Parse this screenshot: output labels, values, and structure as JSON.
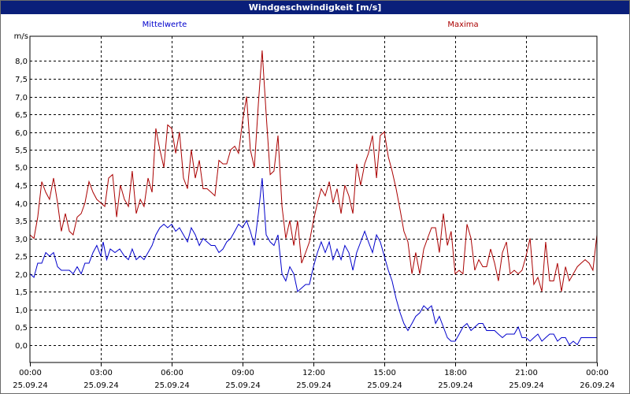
{
  "window": {
    "title": "Windgeschwindigkeit [m/s]"
  },
  "chart_data": {
    "type": "line",
    "title": "Windgeschwindigkeit [m/s]",
    "ylabel": "m/s",
    "xlabel": "",
    "ylim": [
      -0.5,
      8.7
    ],
    "yticks": [
      "0,0",
      "0,5",
      "1,0",
      "1,5",
      "2,0",
      "2,5",
      "3,0",
      "3,5",
      "4,0",
      "4,5",
      "5,0",
      "5,5",
      "6,0",
      "6,5",
      "7,0",
      "7,5",
      "8,0"
    ],
    "xlim": [
      0,
      24
    ],
    "xticks": [
      {
        "time": "00:00",
        "date": "25.09.24"
      },
      {
        "time": "03:00",
        "date": "25.09.24"
      },
      {
        "time": "06:00",
        "date": "25.09.24"
      },
      {
        "time": "09:00",
        "date": "25.09.24"
      },
      {
        "time": "12:00",
        "date": "25.09.24"
      },
      {
        "time": "15:00",
        "date": "25.09.24"
      },
      {
        "time": "18:00",
        "date": "25.09.24"
      },
      {
        "time": "21:00",
        "date": "25.09.24"
      },
      {
        "time": "00:00",
        "date": "26.09.24"
      }
    ],
    "grid": true,
    "series": [
      {
        "name": "Mittelwerte",
        "color": "#0000cc",
        "points": [
          [
            0,
            2.0
          ],
          [
            0.17,
            1.9
          ],
          [
            0.33,
            2.3
          ],
          [
            0.5,
            2.3
          ],
          [
            0.67,
            2.6
          ],
          [
            0.83,
            2.5
          ],
          [
            1.0,
            2.6
          ],
          [
            1.17,
            2.2
          ],
          [
            1.33,
            2.1
          ],
          [
            1.5,
            2.1
          ],
          [
            1.67,
            2.1
          ],
          [
            1.83,
            2.0
          ],
          [
            2.0,
            2.2
          ],
          [
            2.17,
            2.0
          ],
          [
            2.33,
            2.3
          ],
          [
            2.5,
            2.3
          ],
          [
            2.67,
            2.6
          ],
          [
            2.83,
            2.8
          ],
          [
            3.0,
            2.5
          ],
          [
            3.1,
            2.9
          ],
          [
            3.25,
            2.4
          ],
          [
            3.4,
            2.7
          ],
          [
            3.6,
            2.6
          ],
          [
            3.8,
            2.7
          ],
          [
            4.0,
            2.5
          ],
          [
            4.17,
            2.4
          ],
          [
            4.33,
            2.7
          ],
          [
            4.5,
            2.4
          ],
          [
            4.67,
            2.5
          ],
          [
            4.83,
            2.4
          ],
          [
            5.0,
            2.6
          ],
          [
            5.17,
            2.8
          ],
          [
            5.33,
            3.1
          ],
          [
            5.5,
            3.3
          ],
          [
            5.67,
            3.4
          ],
          [
            5.83,
            3.3
          ],
          [
            6.0,
            3.4
          ],
          [
            6.17,
            3.2
          ],
          [
            6.33,
            3.3
          ],
          [
            6.5,
            3.1
          ],
          [
            6.67,
            2.9
          ],
          [
            6.83,
            3.3
          ],
          [
            7.0,
            3.1
          ],
          [
            7.17,
            2.8
          ],
          [
            7.33,
            3.0
          ],
          [
            7.5,
            2.9
          ],
          [
            7.67,
            2.8
          ],
          [
            7.83,
            2.8
          ],
          [
            8.0,
            2.6
          ],
          [
            8.17,
            2.7
          ],
          [
            8.33,
            2.9
          ],
          [
            8.5,
            3.0
          ],
          [
            8.67,
            3.2
          ],
          [
            8.83,
            3.4
          ],
          [
            9.0,
            3.3
          ],
          [
            9.17,
            3.5
          ],
          [
            9.33,
            3.2
          ],
          [
            9.5,
            2.8
          ],
          [
            9.67,
            3.7
          ],
          [
            9.83,
            4.7
          ],
          [
            10.0,
            3.1
          ],
          [
            10.17,
            2.9
          ],
          [
            10.33,
            2.8
          ],
          [
            10.5,
            3.1
          ],
          [
            10.67,
            2.0
          ],
          [
            10.83,
            1.8
          ],
          [
            11.0,
            2.2
          ],
          [
            11.17,
            2.0
          ],
          [
            11.33,
            1.5
          ],
          [
            11.5,
            1.6
          ],
          [
            11.67,
            1.7
          ],
          [
            11.83,
            1.7
          ],
          [
            12.0,
            2.2
          ],
          [
            12.17,
            2.6
          ],
          [
            12.33,
            2.9
          ],
          [
            12.5,
            2.6
          ],
          [
            12.67,
            2.9
          ],
          [
            12.83,
            2.4
          ],
          [
            13.0,
            2.7
          ],
          [
            13.17,
            2.4
          ],
          [
            13.33,
            2.8
          ],
          [
            13.5,
            2.6
          ],
          [
            13.67,
            2.1
          ],
          [
            13.83,
            2.6
          ],
          [
            14.0,
            2.9
          ],
          [
            14.17,
            3.2
          ],
          [
            14.33,
            2.9
          ],
          [
            14.5,
            2.6
          ],
          [
            14.67,
            3.1
          ],
          [
            14.83,
            2.9
          ],
          [
            15.0,
            2.5
          ],
          [
            15.17,
            2.1
          ],
          [
            15.33,
            1.8
          ],
          [
            15.5,
            1.3
          ],
          [
            15.67,
            0.9
          ],
          [
            15.83,
            0.6
          ],
          [
            16.0,
            0.4
          ],
          [
            16.17,
            0.6
          ],
          [
            16.33,
            0.8
          ],
          [
            16.5,
            0.9
          ],
          [
            16.67,
            1.1
          ],
          [
            16.83,
            1.0
          ],
          [
            17.0,
            1.1
          ],
          [
            17.17,
            0.6
          ],
          [
            17.33,
            0.8
          ],
          [
            17.5,
            0.5
          ],
          [
            17.67,
            0.2
          ],
          [
            17.83,
            0.1
          ],
          [
            18.0,
            0.1
          ],
          [
            18.17,
            0.3
          ],
          [
            18.33,
            0.5
          ],
          [
            18.5,
            0.6
          ],
          [
            18.67,
            0.4
          ],
          [
            18.83,
            0.5
          ],
          [
            19.0,
            0.6
          ],
          [
            19.17,
            0.6
          ],
          [
            19.33,
            0.4
          ],
          [
            19.5,
            0.4
          ],
          [
            19.67,
            0.4
          ],
          [
            19.83,
            0.3
          ],
          [
            20.0,
            0.2
          ],
          [
            20.17,
            0.3
          ],
          [
            20.33,
            0.3
          ],
          [
            20.5,
            0.3
          ],
          [
            20.67,
            0.5
          ],
          [
            20.83,
            0.2
          ],
          [
            21.0,
            0.2
          ],
          [
            21.17,
            0.1
          ],
          [
            21.33,
            0.2
          ],
          [
            21.5,
            0.3
          ],
          [
            21.67,
            0.1
          ],
          [
            21.83,
            0.2
          ],
          [
            22.0,
            0.3
          ],
          [
            22.17,
            0.3
          ],
          [
            22.33,
            0.1
          ],
          [
            22.5,
            0.2
          ],
          [
            22.67,
            0.2
          ],
          [
            22.83,
            0.0
          ],
          [
            23.0,
            0.1
          ],
          [
            23.17,
            0.0
          ],
          [
            23.33,
            0.2
          ],
          [
            23.5,
            0.2
          ],
          [
            23.67,
            0.2
          ],
          [
            23.83,
            0.2
          ],
          [
            24.0,
            0.2
          ]
        ]
      },
      {
        "name": "Maxima",
        "color": "#aa0000",
        "points": [
          [
            0,
            3.1
          ],
          [
            0.17,
            3.0
          ],
          [
            0.33,
            3.6
          ],
          [
            0.5,
            4.6
          ],
          [
            0.67,
            4.3
          ],
          [
            0.83,
            4.1
          ],
          [
            1.0,
            4.7
          ],
          [
            1.17,
            4.0
          ],
          [
            1.33,
            3.2
          ],
          [
            1.5,
            3.7
          ],
          [
            1.67,
            3.2
          ],
          [
            1.83,
            3.1
          ],
          [
            2.0,
            3.6
          ],
          [
            2.17,
            3.7
          ],
          [
            2.33,
            4.0
          ],
          [
            2.5,
            4.6
          ],
          [
            2.67,
            4.3
          ],
          [
            2.83,
            4.1
          ],
          [
            3.0,
            4.0
          ],
          [
            3.17,
            3.9
          ],
          [
            3.33,
            4.7
          ],
          [
            3.5,
            4.8
          ],
          [
            3.67,
            3.6
          ],
          [
            3.83,
            4.5
          ],
          [
            4.0,
            4.1
          ],
          [
            4.17,
            3.9
          ],
          [
            4.33,
            4.9
          ],
          [
            4.5,
            3.7
          ],
          [
            4.67,
            4.1
          ],
          [
            4.83,
            3.9
          ],
          [
            5.0,
            4.7
          ],
          [
            5.17,
            4.3
          ],
          [
            5.33,
            6.1
          ],
          [
            5.5,
            5.5
          ],
          [
            5.67,
            5.0
          ],
          [
            5.83,
            6.2
          ],
          [
            6.0,
            6.1
          ],
          [
            6.17,
            5.4
          ],
          [
            6.33,
            6.0
          ],
          [
            6.5,
            4.7
          ],
          [
            6.67,
            4.4
          ],
          [
            6.83,
            5.5
          ],
          [
            7.0,
            4.7
          ],
          [
            7.17,
            5.2
          ],
          [
            7.33,
            4.4
          ],
          [
            7.5,
            4.4
          ],
          [
            7.67,
            4.3
          ],
          [
            7.83,
            4.2
          ],
          [
            8.0,
            5.2
          ],
          [
            8.17,
            5.1
          ],
          [
            8.33,
            5.1
          ],
          [
            8.5,
            5.5
          ],
          [
            8.67,
            5.6
          ],
          [
            8.83,
            5.4
          ],
          [
            9.0,
            6.3
          ],
          [
            9.17,
            7.0
          ],
          [
            9.33,
            5.5
          ],
          [
            9.5,
            5.0
          ],
          [
            9.67,
            6.8
          ],
          [
            9.83,
            8.3
          ],
          [
            10.0,
            6.5
          ],
          [
            10.17,
            4.8
          ],
          [
            10.33,
            4.9
          ],
          [
            10.5,
            5.9
          ],
          [
            10.67,
            3.9
          ],
          [
            10.83,
            3.0
          ],
          [
            11.0,
            3.5
          ],
          [
            11.17,
            2.8
          ],
          [
            11.33,
            3.5
          ],
          [
            11.5,
            2.3
          ],
          [
            11.67,
            2.6
          ],
          [
            11.83,
            2.9
          ],
          [
            12.0,
            3.5
          ],
          [
            12.17,
            4.0
          ],
          [
            12.33,
            4.4
          ],
          [
            12.5,
            4.2
          ],
          [
            12.67,
            4.6
          ],
          [
            12.83,
            4.0
          ],
          [
            13.0,
            4.4
          ],
          [
            13.17,
            3.7
          ],
          [
            13.33,
            4.5
          ],
          [
            13.5,
            4.2
          ],
          [
            13.67,
            3.7
          ],
          [
            13.83,
            5.1
          ],
          [
            14.0,
            4.5
          ],
          [
            14.17,
            5.1
          ],
          [
            14.33,
            5.4
          ],
          [
            14.5,
            5.9
          ],
          [
            14.67,
            4.7
          ],
          [
            14.83,
            5.9
          ],
          [
            15.0,
            6.0
          ],
          [
            15.17,
            5.3
          ],
          [
            15.33,
            4.9
          ],
          [
            15.5,
            4.4
          ],
          [
            15.67,
            3.8
          ],
          [
            15.83,
            3.2
          ],
          [
            16.0,
            2.9
          ],
          [
            16.17,
            2.0
          ],
          [
            16.33,
            2.6
          ],
          [
            16.5,
            2.0
          ],
          [
            16.67,
            2.7
          ],
          [
            16.83,
            3.0
          ],
          [
            17.0,
            3.3
          ],
          [
            17.17,
            3.3
          ],
          [
            17.33,
            2.6
          ],
          [
            17.5,
            3.7
          ],
          [
            17.67,
            2.8
          ],
          [
            17.83,
            3.2
          ],
          [
            18.0,
            2.0
          ],
          [
            18.17,
            2.1
          ],
          [
            18.33,
            2.0
          ],
          [
            18.5,
            3.4
          ],
          [
            18.67,
            3.0
          ],
          [
            18.83,
            2.1
          ],
          [
            19.0,
            2.4
          ],
          [
            19.17,
            2.2
          ],
          [
            19.33,
            2.2
          ],
          [
            19.5,
            2.7
          ],
          [
            19.67,
            2.3
          ],
          [
            19.83,
            1.8
          ],
          [
            20.0,
            2.6
          ],
          [
            20.17,
            2.9
          ],
          [
            20.33,
            2.0
          ],
          [
            20.5,
            2.1
          ],
          [
            20.67,
            2.0
          ],
          [
            20.83,
            2.1
          ],
          [
            21.0,
            2.5
          ],
          [
            21.17,
            3.0
          ],
          [
            21.33,
            1.7
          ],
          [
            21.5,
            1.9
          ],
          [
            21.67,
            1.5
          ],
          [
            21.83,
            2.9
          ],
          [
            22.0,
            1.8
          ],
          [
            22.17,
            1.8
          ],
          [
            22.33,
            2.3
          ],
          [
            22.5,
            1.5
          ],
          [
            22.67,
            2.2
          ],
          [
            22.83,
            1.8
          ],
          [
            23.0,
            2.0
          ],
          [
            23.17,
            2.2
          ],
          [
            23.33,
            2.3
          ],
          [
            23.5,
            2.4
          ],
          [
            23.67,
            2.3
          ],
          [
            23.83,
            2.1
          ],
          [
            24.0,
            3.1
          ]
        ]
      }
    ]
  }
}
